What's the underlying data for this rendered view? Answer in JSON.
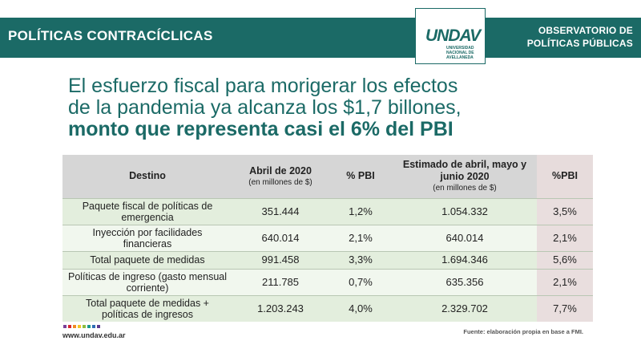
{
  "header": {
    "title": "POLÍTICAS CONTRACÍCLICAS",
    "logo_text": "UNDAV",
    "logo_sub": "UNIVERSIDAD NACIONAL DE AVELLANEDA",
    "observatory_line1": "OBSERVATORIO DE",
    "observatory_line2": "POLÍTICAS PÚBLICAS"
  },
  "headline": {
    "line1": "El esfuerzo fiscal para morigerar los efectos",
    "line2": "de la pandemia ya alcanza los $1,7 billones,",
    "line3": "monto que representa casi el 6% del PBI"
  },
  "table": {
    "headers": {
      "destino": "Destino",
      "abril": "Abril de 2020",
      "abril_unit": "(en millones de $)",
      "pbi1": "% PBI",
      "estimado": "Estimado de abril, mayo y junio 2020",
      "estimado_unit": "(en millones de $)",
      "pbi2": "%PBI"
    },
    "rows": [
      {
        "destino": "Paquete fiscal de políticas de emergencia",
        "abril": "351.444",
        "pbi1": "1,2%",
        "estimado": "1.054.332",
        "pbi2": "3,5%"
      },
      {
        "destino": "Inyección por facilidades financieras",
        "abril": "640.014",
        "pbi1": "2,1%",
        "estimado": "640.014",
        "pbi2": "2,1%"
      },
      {
        "destino": "Total paquete de medidas",
        "abril": "991.458",
        "pbi1": "3,3%",
        "estimado": "1.694.346",
        "pbi2": "5,6%"
      },
      {
        "destino": "Políticas de ingreso (gasto mensual corriente)",
        "abril": "211.785",
        "pbi1": "0,7%",
        "estimado": "635.356",
        "pbi2": "2,1%"
      },
      {
        "destino": "Total paquete de medidas + políticas de ingresos",
        "abril": "1.203.243",
        "pbi1": "4,0%",
        "estimado": "2.329.702",
        "pbi2": "7,7%"
      }
    ]
  },
  "footer": {
    "site": "www.undav.edu.ar",
    "source": "Fuente: elaboración propia en base a FMI.",
    "dot_colors": [
      "#7b3f98",
      "#d9272e",
      "#f08a24",
      "#f3c623",
      "#8dbd3f",
      "#1b9b8c",
      "#2e6db4",
      "#5b3a8e"
    ]
  },
  "colors": {
    "brand_teal": "#1b6a66",
    "header_gray": "#d6d6d6",
    "row_green": "#e3eedd"
  }
}
